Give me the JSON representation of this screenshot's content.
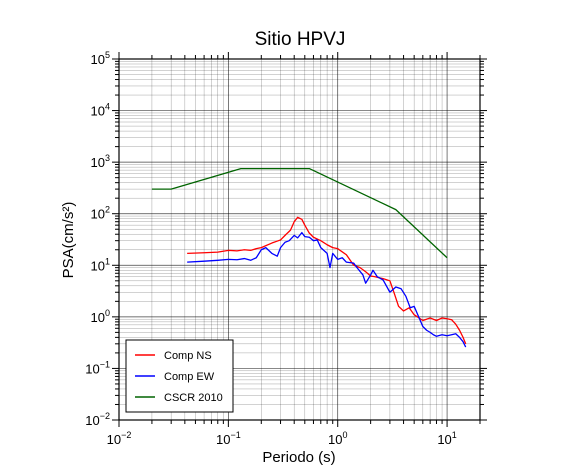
{
  "chart_data": {
    "type": "line",
    "title": "Sitio HPVJ",
    "xlabel": "Periodo (s)",
    "ylabel": "PSA(cm/s²)",
    "xscale": "log",
    "yscale": "log",
    "xlim": [
      0.01,
      20
    ],
    "ylim": [
      0.01,
      100000
    ],
    "grid": true,
    "legend_position": "bottom-left",
    "x_tick_labels": [
      {
        "value": 0.01,
        "base": "10",
        "exp": "−2"
      },
      {
        "value": 0.1,
        "base": "10",
        "exp": "−1"
      },
      {
        "value": 1,
        "base": "10",
        "exp": "0"
      },
      {
        "value": 10,
        "base": "10",
        "exp": "1"
      }
    ],
    "y_tick_labels": [
      {
        "value": 0.01,
        "base": "10",
        "exp": "−2"
      },
      {
        "value": 0.1,
        "base": "10",
        "exp": "−1"
      },
      {
        "value": 1,
        "base": "10",
        "exp": "0"
      },
      {
        "value": 10,
        "base": "10",
        "exp": "1"
      },
      {
        "value": 100,
        "base": "10",
        "exp": "2"
      },
      {
        "value": 1000,
        "base": "10",
        "exp": "3"
      },
      {
        "value": 10000,
        "base": "10",
        "exp": "4"
      },
      {
        "value": 100000,
        "base": "10",
        "exp": "5"
      }
    ],
    "series": [
      {
        "name": "Comp NS",
        "color": "#ff0000",
        "points": [
          [
            0.042,
            17
          ],
          [
            0.06,
            17.5
          ],
          [
            0.08,
            18
          ],
          [
            0.1,
            19.5
          ],
          [
            0.12,
            19
          ],
          [
            0.14,
            20
          ],
          [
            0.16,
            19.5
          ],
          [
            0.18,
            21
          ],
          [
            0.2,
            22
          ],
          [
            0.25,
            27
          ],
          [
            0.3,
            31
          ],
          [
            0.33,
            38
          ],
          [
            0.37,
            48
          ],
          [
            0.4,
            70
          ],
          [
            0.43,
            85
          ],
          [
            0.47,
            78
          ],
          [
            0.5,
            60
          ],
          [
            0.55,
            42
          ],
          [
            0.6,
            35
          ],
          [
            0.7,
            30
          ],
          [
            0.8,
            25
          ],
          [
            0.9,
            22
          ],
          [
            1.0,
            21
          ],
          [
            1.2,
            16
          ],
          [
            1.4,
            10
          ],
          [
            1.6,
            9
          ],
          [
            1.8,
            7.5
          ],
          [
            2.0,
            6.2
          ],
          [
            2.2,
            6.0
          ],
          [
            2.6,
            5.5
          ],
          [
            3.0,
            5.0
          ],
          [
            3.3,
            2.8
          ],
          [
            3.6,
            1.6
          ],
          [
            4.0,
            1.3
          ],
          [
            4.5,
            1.5
          ],
          [
            5.0,
            1.1
          ],
          [
            6.0,
            0.85
          ],
          [
            7.0,
            0.95
          ],
          [
            8.0,
            0.85
          ],
          [
            9.0,
            0.95
          ],
          [
            10.0,
            0.92
          ],
          [
            11.0,
            0.88
          ],
          [
            12.0,
            0.72
          ],
          [
            13.0,
            0.55
          ],
          [
            14.0,
            0.4
          ],
          [
            14.8,
            0.3
          ]
        ]
      },
      {
        "name": "Comp EW",
        "color": "#0000ff",
        "points": [
          [
            0.042,
            11.5
          ],
          [
            0.06,
            12
          ],
          [
            0.08,
            12.5
          ],
          [
            0.1,
            13
          ],
          [
            0.12,
            12.8
          ],
          [
            0.14,
            13.5
          ],
          [
            0.16,
            12.5
          ],
          [
            0.18,
            14
          ],
          [
            0.2,
            20
          ],
          [
            0.22,
            22
          ],
          [
            0.25,
            17
          ],
          [
            0.28,
            15
          ],
          [
            0.3,
            22
          ],
          [
            0.33,
            28
          ],
          [
            0.36,
            30
          ],
          [
            0.4,
            38
          ],
          [
            0.43,
            34
          ],
          [
            0.47,
            43
          ],
          [
            0.5,
            36
          ],
          [
            0.55,
            35
          ],
          [
            0.6,
            30
          ],
          [
            0.65,
            31
          ],
          [
            0.7,
            22
          ],
          [
            0.8,
            17
          ],
          [
            0.85,
            9
          ],
          [
            0.9,
            17
          ],
          [
            1.0,
            13
          ],
          [
            1.1,
            14
          ],
          [
            1.2,
            11.5
          ],
          [
            1.4,
            11
          ],
          [
            1.5,
            9
          ],
          [
            1.7,
            6.5
          ],
          [
            1.8,
            4.5
          ],
          [
            2.0,
            6.5
          ],
          [
            2.1,
            8
          ],
          [
            2.3,
            6
          ],
          [
            2.6,
            5.2
          ],
          [
            3.0,
            3.0
          ],
          [
            3.4,
            3.8
          ],
          [
            3.8,
            3.5
          ],
          [
            4.2,
            2.5
          ],
          [
            4.6,
            1.5
          ],
          [
            5.0,
            1.6
          ],
          [
            5.5,
            1.0
          ],
          [
            6.0,
            0.65
          ],
          [
            6.5,
            0.55
          ],
          [
            7.0,
            0.5
          ],
          [
            7.5,
            0.45
          ],
          [
            8.0,
            0.42
          ],
          [
            9.0,
            0.45
          ],
          [
            10.0,
            0.43
          ],
          [
            11.0,
            0.45
          ],
          [
            12.0,
            0.47
          ],
          [
            13.0,
            0.4
          ],
          [
            14.0,
            0.33
          ],
          [
            14.8,
            0.26
          ]
        ]
      },
      {
        "name": "CSCR 2010",
        "color": "#006400",
        "points": [
          [
            0.02,
            300
          ],
          [
            0.03,
            300
          ],
          [
            0.13,
            750
          ],
          [
            0.55,
            750
          ],
          [
            3.4,
            120
          ],
          [
            10.0,
            14
          ]
        ]
      }
    ]
  }
}
